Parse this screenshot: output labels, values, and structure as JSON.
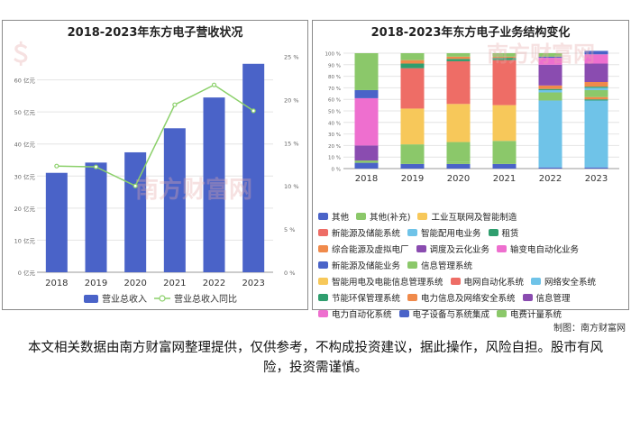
{
  "left_chart": {
    "title": "2018-2023年东方电子营收状况",
    "y_left_ticks": [
      "0 亿元",
      "10 亿元",
      "20 亿元",
      "30 亿元",
      "40 亿元",
      "50 亿元",
      "60 亿元"
    ],
    "y_right_ticks": [
      "0 %",
      "5 %",
      "10 %",
      "15 %",
      "20 %",
      "25 %"
    ],
    "legend_bar": "营业总收入",
    "legend_line": "营业总收入同比"
  },
  "right_chart": {
    "title": "2018-2023年东方电子业务结构变化",
    "y_ticks": [
      "0 %",
      "10 %",
      "20 %",
      "30 %",
      "40 %",
      "50 %",
      "60 %",
      "70 %",
      "80 %",
      "90 %",
      "100 %"
    ]
  },
  "chart_data": [
    {
      "type": "bar",
      "title": "2018-2023年东方电子营收状况",
      "categories": [
        "2018",
        "2019",
        "2020",
        "2021",
        "2022",
        "2023"
      ],
      "series": [
        {
          "name": "营业总收入",
          "type": "bar",
          "axis": "left",
          "unit": "亿元",
          "values": [
            31,
            34.2,
            37.4,
            44.9,
            54.5,
            65.0
          ]
        },
        {
          "name": "营业总收入同比",
          "type": "line",
          "axis": "right",
          "unit": "%",
          "values": [
            12.3,
            12.2,
            10.0,
            19.4,
            21.7,
            18.7
          ]
        }
      ],
      "ylim_left": [
        0,
        70
      ],
      "ylim_right": [
        0,
        26
      ],
      "colors": {
        "bar": "#4a63c8",
        "line": "#8bd06a"
      },
      "legend": "bottom"
    },
    {
      "type": "bar",
      "stacked": true,
      "title": "2018-2023年东方电子业务结构变化",
      "categories": [
        "2018",
        "2019",
        "2020",
        "2021",
        "2022",
        "2023"
      ],
      "ylim": [
        0,
        100
      ],
      "series": [
        {
          "name": "其他",
          "color": "#4a63c8",
          "values": [
            5,
            4,
            4,
            4,
            1,
            1
          ]
        },
        {
          "name": "其他(补充)",
          "color": "#8bc86a",
          "values": [
            2,
            3,
            2,
            3,
            0,
            0
          ]
        },
        {
          "name": "工业互联网及智能制造",
          "color": "#f7c85a",
          "values": [
            0,
            0,
            0,
            0,
            0,
            0
          ]
        },
        {
          "name": "新能源及储能系统",
          "color": "#ee6d66",
          "values": [
            0,
            0,
            0,
            0,
            0,
            0
          ]
        },
        {
          "name": "智能配用电业务",
          "color": "#6fc3e8",
          "values": [
            0,
            0,
            0,
            0,
            58,
            58
          ]
        },
        {
          "name": "租赁",
          "color": "#2f9e6e",
          "values": [
            0,
            0,
            0,
            0,
            0,
            1
          ]
        },
        {
          "name": "综合能源及虚拟电厂",
          "color": "#f08a4b",
          "values": [
            0,
            0,
            0,
            0,
            0,
            2
          ]
        },
        {
          "name": "调度及云化业务",
          "color": "#8a4cb0",
          "values": [
            0,
            0,
            0,
            0,
            0,
            0
          ]
        },
        {
          "name": "输变电自动化业务",
          "color": "#ee6fcf",
          "values": [
            0,
            0,
            0,
            0,
            0,
            0
          ]
        },
        {
          "name": "新能源及储能业务",
          "color": "#4a63c8",
          "values": [
            0,
            0,
            0,
            0,
            0,
            0
          ]
        },
        {
          "name": "信息管理系统",
          "color": "#8bc86a",
          "values": [
            0,
            14,
            17,
            17,
            7,
            6
          ]
        },
        {
          "name": "智能用电及电能信息管理系统",
          "color": "#f7c85a",
          "values": [
            0,
            31,
            33,
            31,
            0,
            0
          ]
        },
        {
          "name": "电网自动化系统",
          "color": "#ee6d66",
          "values": [
            0,
            35,
            37,
            39,
            0,
            0
          ]
        },
        {
          "name": "网络安全系统",
          "color": "#6fc3e8",
          "values": [
            0,
            0,
            0,
            0,
            2,
            2
          ]
        },
        {
          "name": "节能环保管理系统",
          "color": "#2f9e6e",
          "values": [
            0,
            4,
            2,
            2,
            1,
            1
          ]
        },
        {
          "name": "电力信息及网络安全系统",
          "color": "#f08a4b",
          "values": [
            0,
            3,
            2,
            1,
            3,
            4
          ]
        },
        {
          "name": "信息管理",
          "color": "#8a4cb0",
          "values": [
            13,
            0,
            0,
            0,
            18,
            16
          ]
        },
        {
          "name": "电力自动化系统",
          "color": "#ee6fcf",
          "values": [
            41,
            0,
            0,
            0,
            6,
            8
          ]
        },
        {
          "name": "电子设备与系统集成",
          "color": "#4a63c8",
          "values": [
            7,
            0,
            0,
            0,
            1,
            3
          ]
        },
        {
          "name": "电费计量系统",
          "color": "#8bc86a",
          "values": [
            32,
            6,
            3,
            3,
            3,
            0
          ]
        }
      ],
      "legend": "bottom"
    }
  ],
  "credit": "制图：南方财富网",
  "disclaimer": "本文相关数据由南方财富网整理提供，仅供参考，不构成投资建议，据此操作，风险自担。股市有风险，投资需谨慎。",
  "watermark": "南方财富网"
}
